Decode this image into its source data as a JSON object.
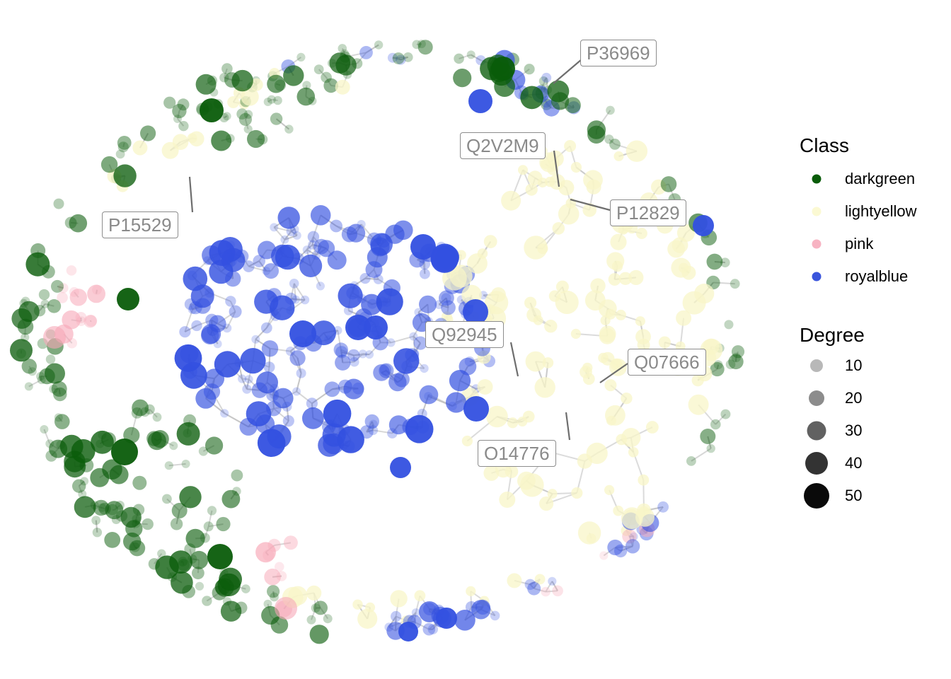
{
  "network": {
    "labels": [
      "P36969",
      "Q2V2M9",
      "P12829",
      "P15529",
      "Q92945",
      "Q07666",
      "O14776"
    ]
  },
  "legend": {
    "class_title": "Class",
    "classes": [
      {
        "label": "darkgreen",
        "color": "#0a5c0a"
      },
      {
        "label": "lightyellow",
        "color": "#fbf9d3"
      },
      {
        "label": "pink",
        "color": "#f7b3c2"
      },
      {
        "label": "royalblue",
        "color": "#3a55dc"
      }
    ],
    "degree_title": "Degree",
    "degrees": [
      {
        "label": "10"
      },
      {
        "label": "20"
      },
      {
        "label": "30"
      },
      {
        "label": "40"
      },
      {
        "label": "50"
      }
    ]
  }
}
